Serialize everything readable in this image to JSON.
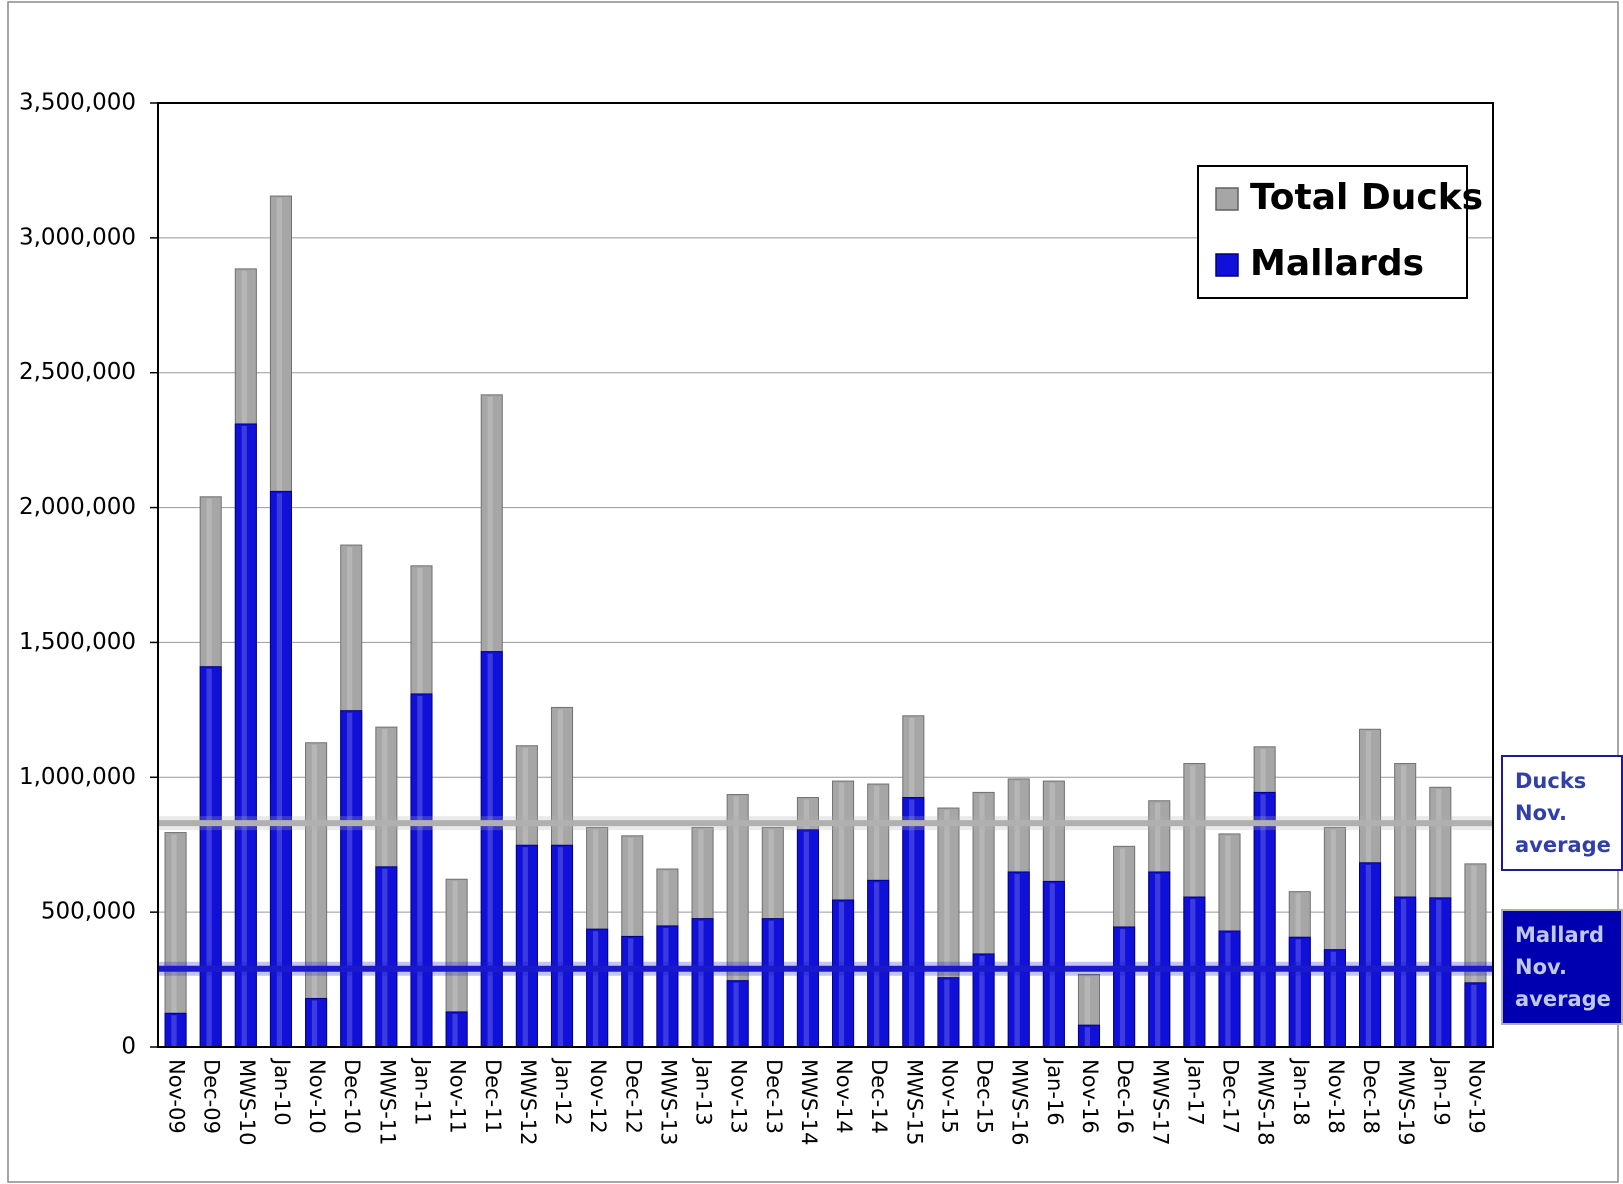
{
  "chart_data": {
    "type": "bar",
    "categories": [
      "Nov-09",
      "Dec-09",
      "MWS-10",
      "Jan-10",
      "Nov-10",
      "Dec-10",
      "MWS-11",
      "Jan-11",
      "Nov-11",
      "Dec-11",
      "MWS-12",
      "Jan-12",
      "Nov-12",
      "Dec-12",
      "MWS-13",
      "Jan-13",
      "Nov-13",
      "Dec-13",
      "MWS-14",
      "Nov-14",
      "Dec-14",
      "MWS-15",
      "Nov-15",
      "Dec-15",
      "MWS-16",
      "Jan-16",
      "Nov-16",
      "Dec-16",
      "MWS-17",
      "Jan-17",
      "Dec-17",
      "MWS-18",
      "Jan-18",
      "Nov-18",
      "Dec-18",
      "MWS-19",
      "Jan-19",
      "Nov-19"
    ],
    "series": [
      {
        "name": "Total Ducks",
        "color": "#a6a6a6",
        "values": [
          795000,
          2040000,
          2885000,
          3155000,
          1128000,
          1861000,
          1186000,
          1784000,
          622000,
          2418000,
          1117000,
          1259000,
          814000,
          783000,
          660000,
          814000,
          936000,
          814000,
          925000,
          986000,
          975000,
          1228000,
          886000,
          944000,
          994000,
          986000,
          269000,
          744000,
          913000,
          1051000,
          790000,
          1113000,
          576000,
          814000,
          1178000,
          1051000,
          963000,
          679000
        ]
      },
      {
        "name": "Mallards",
        "color": "#1010d8",
        "values": [
          125000,
          1410000,
          2310000,
          2060000,
          180000,
          1247000,
          668000,
          1309000,
          130000,
          1466000,
          748000,
          748000,
          437000,
          410000,
          449000,
          476000,
          246000,
          476000,
          806000,
          545000,
          618000,
          925000,
          257000,
          345000,
          649000,
          614000,
          81000,
          445000,
          649000,
          556000,
          430000,
          944000,
          407000,
          361000,
          683000,
          556000,
          553000,
          238000
        ]
      }
    ],
    "reference_lines": [
      {
        "name": "Ducks Nov. average",
        "value": 830000,
        "color": "#b0b0b0"
      },
      {
        "name": "Mallard Nov. average",
        "value": 290000,
        "color": "#1a1acc"
      }
    ],
    "ylim": [
      0,
      3500000
    ],
    "yticks": [
      0,
      {
        "value": 500000,
        "label": "500,000"
      },
      {
        "value": 1000000,
        "label": "1,000,000"
      },
      {
        "value": 1500000,
        "label": "1,500,000"
      },
      {
        "value": 2000000,
        "label": "2,000,000"
      },
      {
        "value": 2500000,
        "label": "2,500,000"
      },
      {
        "value": 3000000,
        "label": "3,000,000"
      },
      {
        "value": 3500000,
        "label": "3,500,000"
      }
    ],
    "grid": true,
    "legend": "top-right"
  }
}
